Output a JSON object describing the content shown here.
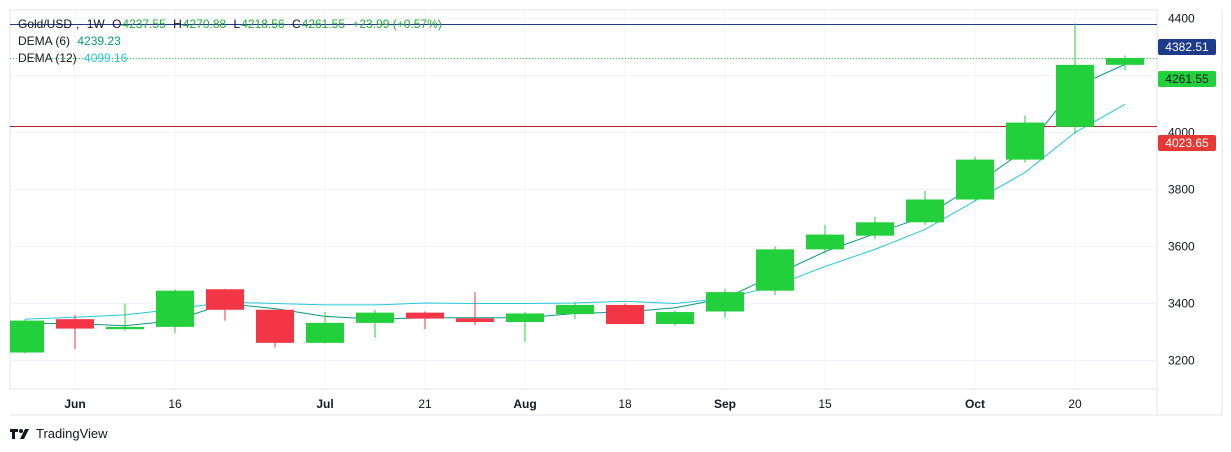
{
  "legend": {
    "symbol": "Gold/USD",
    "interval": "1W",
    "o_label": "O",
    "o_value": "4237.55",
    "h_label": "H",
    "h_value": "4270.88",
    "l_label": "L",
    "l_value": "4218.56",
    "c_label": "C",
    "c_value": "4261.55",
    "change": "+23.99 (+0.57%)",
    "dema6_label": "DEMA (6)",
    "dema6_value": "4239.23",
    "dema12_label": "DEMA (12)",
    "dema12_value": "4099.16"
  },
  "brand": {
    "name": "TradingView",
    "icon": "tradingview-logo-icon"
  },
  "price_labels": {
    "high_line": "4382.51",
    "last_price": "4261.55",
    "support_line": "4023.65"
  },
  "colors": {
    "up": "#22d03b",
    "down": "#f23645",
    "dema6": "#089981",
    "dema12": "#26c6da",
    "high_line": "#1e3a8a",
    "support_line": "#b22222",
    "label_high": "#1e3a8a",
    "label_last": "#22d03b",
    "label_support": "#e53935"
  },
  "chart_data": {
    "type": "candlestick",
    "ylim": [
      3100,
      4430
    ],
    "yticks": [
      3200,
      3400,
      3600,
      3800,
      4000,
      4200,
      4400
    ],
    "xticks": [
      {
        "label": "Jun",
        "bar": 1
      },
      {
        "label": "16",
        "bar": 3
      },
      {
        "label": "Jul",
        "bar": 6
      },
      {
        "label": "21",
        "bar": 8
      },
      {
        "label": "Aug",
        "bar": 10
      },
      {
        "label": "18",
        "bar": 12
      },
      {
        "label": "Sep",
        "bar": 14
      },
      {
        "label": "15",
        "bar": 16
      },
      {
        "label": "Oct",
        "bar": 19
      },
      {
        "label": "20",
        "bar": 21
      }
    ],
    "candles": [
      {
        "o": 3228,
        "h": 3345,
        "l": 3225,
        "c": 3340
      },
      {
        "o": 3345,
        "h": 3360,
        "l": 3240,
        "c": 3312
      },
      {
        "o": 3310,
        "h": 3400,
        "l": 3305,
        "c": 3318
      },
      {
        "o": 3318,
        "h": 3450,
        "l": 3295,
        "c": 3445
      },
      {
        "o": 3450,
        "h": 3452,
        "l": 3340,
        "c": 3378
      },
      {
        "o": 3378,
        "h": 3380,
        "l": 3245,
        "c": 3262
      },
      {
        "o": 3262,
        "h": 3370,
        "l": 3260,
        "c": 3332
      },
      {
        "o": 3332,
        "h": 3378,
        "l": 3280,
        "c": 3368
      },
      {
        "o": 3368,
        "h": 3372,
        "l": 3310,
        "c": 3347
      },
      {
        "o": 3348,
        "h": 3440,
        "l": 3325,
        "c": 3335
      },
      {
        "o": 3335,
        "h": 3370,
        "l": 3265,
        "c": 3365
      },
      {
        "o": 3363,
        "h": 3405,
        "l": 3345,
        "c": 3395
      },
      {
        "o": 3395,
        "h": 3400,
        "l": 3330,
        "c": 3328
      },
      {
        "o": 3328,
        "h": 3375,
        "l": 3322,
        "c": 3370
      },
      {
        "o": 3372,
        "h": 3452,
        "l": 3350,
        "c": 3440
      },
      {
        "o": 3445,
        "h": 3600,
        "l": 3430,
        "c": 3590
      },
      {
        "o": 3590,
        "h": 3675,
        "l": 3575,
        "c": 3642
      },
      {
        "o": 3638,
        "h": 3705,
        "l": 3625,
        "c": 3685
      },
      {
        "o": 3685,
        "h": 3795,
        "l": 3675,
        "c": 3765
      },
      {
        "o": 3765,
        "h": 3915,
        "l": 3760,
        "c": 3905
      },
      {
        "o": 3905,
        "h": 4060,
        "l": 3895,
        "c": 4035
      },
      {
        "o": 4020,
        "h": 4382.51,
        "l": 3995,
        "c": 4237.55
      },
      {
        "o": 4237.55,
        "h": 4270.88,
        "l": 4218.56,
        "c": 4261.55
      }
    ],
    "series": [
      {
        "name": "DEMA (6)",
        "values": [
          3330,
          3330,
          3322,
          3340,
          3400,
          3382,
          3355,
          3345,
          3350,
          3350,
          3350,
          3365,
          3370,
          3385,
          3418,
          3500,
          3582,
          3645,
          3705,
          3815,
          3940,
          4160,
          4239.23
        ]
      },
      {
        "name": "DEMA (12)",
        "values": [
          3345,
          3352,
          3360,
          3380,
          3405,
          3400,
          3395,
          3395,
          3402,
          3400,
          3400,
          3402,
          3408,
          3400,
          3418,
          3462,
          3530,
          3590,
          3660,
          3760,
          3860,
          4000,
          4099.16
        ]
      }
    ],
    "hlines": [
      {
        "value": 4382.51,
        "label": "4382.51"
      },
      {
        "value": 4261.55,
        "label": "4261.55",
        "style": "dotted"
      },
      {
        "value": 4023.65,
        "label": "4023.65"
      }
    ]
  }
}
